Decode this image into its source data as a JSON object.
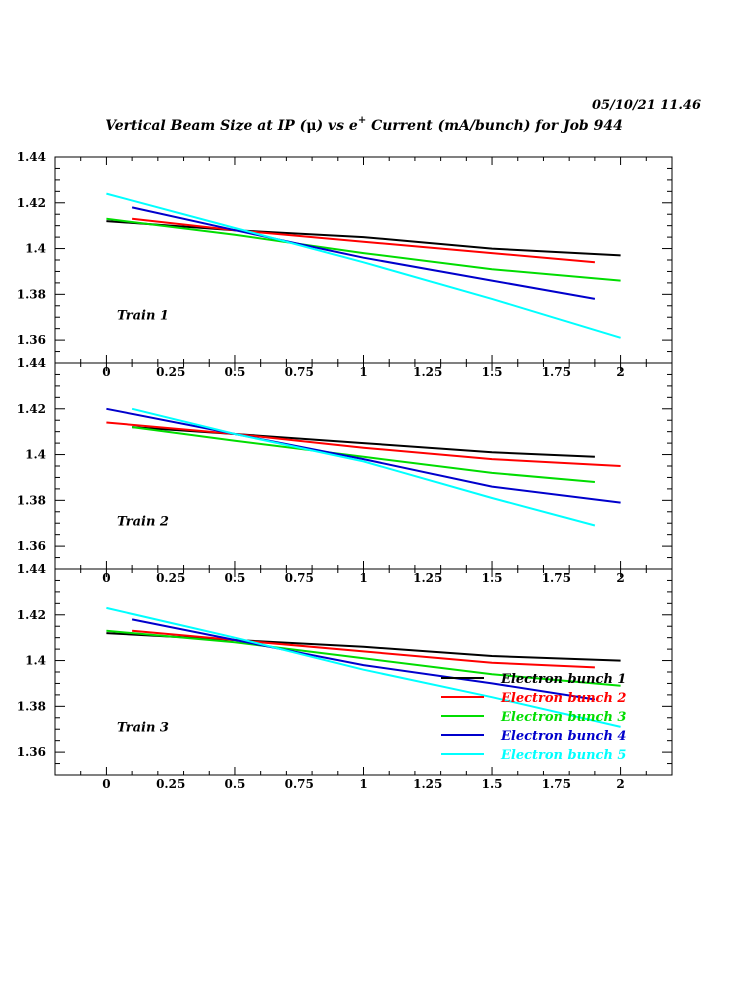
{
  "header": {
    "timestamp": "05/10/21   11.46",
    "title_main": "Vertical Beam Size at IP (",
    "title_mu": "μ",
    "title_mid": ") vs e",
    "title_sup": "+",
    "title_end": " Current (mA/bunch) for Job 944"
  },
  "chart_data": [
    {
      "type": "line",
      "panel_label": "Train 1",
      "xlim": [
        -0.2,
        2.2
      ],
      "ylim": [
        1.35,
        1.44
      ],
      "x_ticks": [
        "0",
        "0.25",
        "0.5",
        "0.75",
        "1",
        "1.25",
        "1.5",
        "1.75",
        "2"
      ],
      "y_ticks": [
        "1.44",
        "1.42",
        "1.4",
        "1.38",
        "1.36"
      ],
      "series": [
        {
          "name": "Electron bunch 1",
          "color": "#000000",
          "x": [
            0,
            0.5,
            1.0,
            1.5,
            2.0
          ],
          "y": [
            1.412,
            1.408,
            1.405,
            1.4,
            1.397
          ]
        },
        {
          "name": "Electron bunch 2",
          "color": "#ff0000",
          "x": [
            0.1,
            0.5,
            1.0,
            1.5,
            1.9
          ],
          "y": [
            1.413,
            1.408,
            1.403,
            1.398,
            1.394
          ]
        },
        {
          "name": "Electron bunch 3",
          "color": "#00dd00",
          "x": [
            0,
            0.5,
            1.0,
            1.5,
            2.0
          ],
          "y": [
            1.413,
            1.406,
            1.398,
            1.391,
            1.386
          ]
        },
        {
          "name": "Electron bunch 4",
          "color": "#0000cc",
          "x": [
            0.1,
            0.5,
            1.0,
            1.5,
            1.9
          ],
          "y": [
            1.418,
            1.408,
            1.396,
            1.386,
            1.378
          ]
        },
        {
          "name": "Electron bunch 5",
          "color": "#00ffff",
          "x": [
            0,
            0.5,
            1.0,
            1.5,
            2.0
          ],
          "y": [
            1.424,
            1.409,
            1.394,
            1.378,
            1.361
          ]
        }
      ]
    },
    {
      "type": "line",
      "panel_label": "Train 2",
      "xlim": [
        -0.2,
        2.2
      ],
      "ylim": [
        1.35,
        1.44
      ],
      "x_ticks": [
        "0",
        "0.25",
        "0.5",
        "0.75",
        "1",
        "1.25",
        "1.5",
        "1.75",
        "2"
      ],
      "y_ticks": [
        "1.44",
        "1.42",
        "1.4",
        "1.38",
        "1.36"
      ],
      "series": [
        {
          "name": "Electron bunch 1",
          "color": "#000000",
          "x": [
            0.1,
            0.5,
            1.0,
            1.5,
            1.9
          ],
          "y": [
            1.412,
            1.409,
            1.405,
            1.401,
            1.399
          ]
        },
        {
          "name": "Electron bunch 2",
          "color": "#ff0000",
          "x": [
            0,
            0.5,
            1.0,
            1.5,
            2.0
          ],
          "y": [
            1.414,
            1.409,
            1.403,
            1.398,
            1.395
          ]
        },
        {
          "name": "Electron bunch 3",
          "color": "#00dd00",
          "x": [
            0.1,
            0.5,
            1.0,
            1.5,
            1.9
          ],
          "y": [
            1.412,
            1.406,
            1.399,
            1.392,
            1.388
          ]
        },
        {
          "name": "Electron bunch 4",
          "color": "#0000cc",
          "x": [
            0,
            0.5,
            1.0,
            1.5,
            2.0
          ],
          "y": [
            1.42,
            1.409,
            1.398,
            1.386,
            1.379
          ]
        },
        {
          "name": "Electron bunch 5",
          "color": "#00ffff",
          "x": [
            0.1,
            0.5,
            1.0,
            1.5,
            1.9
          ],
          "y": [
            1.42,
            1.409,
            1.397,
            1.381,
            1.369
          ]
        }
      ]
    },
    {
      "type": "line",
      "panel_label": "Train 3",
      "xlim": [
        -0.2,
        2.2
      ],
      "ylim": [
        1.35,
        1.44
      ],
      "x_ticks": [
        "0",
        "0.25",
        "0.5",
        "0.75",
        "1",
        "1.25",
        "1.5",
        "1.75",
        "2"
      ],
      "y_ticks": [
        "1.44",
        "1.42",
        "1.4",
        "1.38",
        "1.36"
      ],
      "legend_position": "bottom-right",
      "series": [
        {
          "name": "Electron bunch 1",
          "color": "#000000",
          "x": [
            0,
            0.5,
            1.0,
            1.5,
            2.0
          ],
          "y": [
            1.412,
            1.409,
            1.406,
            1.402,
            1.4
          ]
        },
        {
          "name": "Electron bunch 2",
          "color": "#ff0000",
          "x": [
            0.1,
            0.5,
            1.0,
            1.5,
            1.9
          ],
          "y": [
            1.413,
            1.409,
            1.404,
            1.399,
            1.397
          ]
        },
        {
          "name": "Electron bunch 3",
          "color": "#00dd00",
          "x": [
            0,
            0.5,
            1.0,
            1.5,
            2.0
          ],
          "y": [
            1.413,
            1.408,
            1.401,
            1.394,
            1.389
          ]
        },
        {
          "name": "Electron bunch 4",
          "color": "#0000cc",
          "x": [
            0.1,
            0.5,
            1.0,
            1.5,
            1.9
          ],
          "y": [
            1.418,
            1.409,
            1.398,
            1.39,
            1.383
          ]
        },
        {
          "name": "Electron bunch 5",
          "color": "#00ffff",
          "x": [
            0,
            0.5,
            1.0,
            1.5,
            2.0
          ],
          "y": [
            1.423,
            1.41,
            1.396,
            1.384,
            1.371
          ]
        }
      ]
    }
  ]
}
